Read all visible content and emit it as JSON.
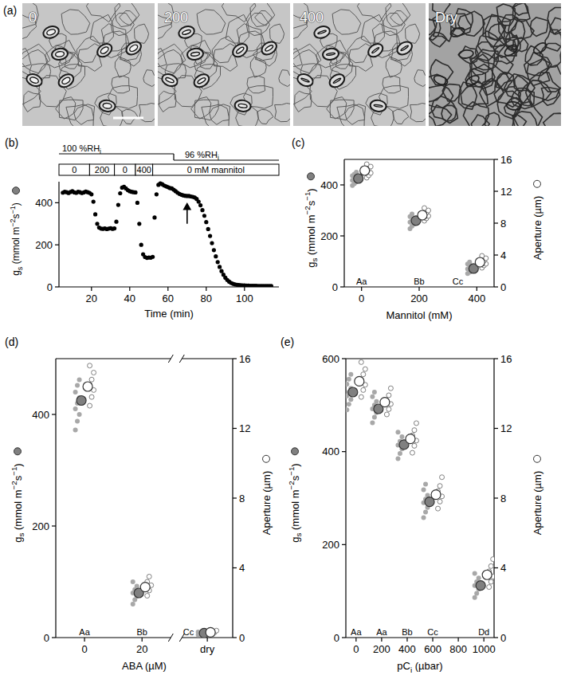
{
  "images": {
    "letter": "(a)",
    "labels": [
      "0",
      "200",
      "400",
      "Dry"
    ]
  },
  "chart_data": [
    {
      "type": "scatter",
      "letter": "(b)",
      "x": [
        5,
        6,
        7,
        8,
        9,
        10,
        11,
        12,
        13,
        14,
        15,
        16,
        17,
        18,
        19,
        20,
        21,
        22,
        23,
        24,
        25,
        26,
        27,
        28,
        29,
        30,
        31,
        32,
        33,
        34,
        35,
        36,
        37,
        38,
        39,
        40,
        41,
        42,
        43,
        44,
        45,
        46,
        47,
        48,
        49,
        50,
        51,
        52,
        53,
        54,
        55,
        56,
        57,
        58,
        59,
        60,
        61,
        62,
        63,
        64,
        65,
        66,
        67,
        68,
        69,
        70,
        71,
        72,
        73,
        74,
        75,
        76,
        77,
        78,
        79,
        80,
        81,
        82,
        83,
        84,
        85,
        86,
        87,
        88,
        89,
        90,
        91,
        92,
        93,
        94,
        95,
        96,
        97,
        98,
        99,
        100,
        101,
        102,
        103,
        104,
        105,
        106,
        107,
        108,
        109,
        110,
        111,
        112,
        113,
        114
      ],
      "values": [
        448,
        452,
        450,
        446,
        451,
        455,
        449,
        447,
        452,
        450,
        446,
        449,
        453,
        450,
        447,
        440,
        405,
        345,
        300,
        282,
        277,
        276,
        278,
        275,
        277,
        279,
        276,
        278,
        310,
        390,
        445,
        472,
        476,
        468,
        460,
        455,
        452,
        450,
        449,
        400,
        300,
        200,
        155,
        142,
        138,
        140,
        139,
        143,
        330,
        440,
        485,
        492,
        488,
        482,
        478,
        474,
        470,
        468,
        462,
        455,
        448,
        442,
        438,
        435,
        433,
        432,
        432,
        430,
        428,
        425,
        418,
        405,
        388,
        365,
        338,
        308,
        275,
        242,
        208,
        175,
        145,
        118,
        95,
        75,
        58,
        44,
        33,
        25,
        19,
        15,
        12,
        10,
        9,
        8,
        7,
        7,
        6,
        6,
        5,
        5,
        5,
        5,
        4,
        4,
        4,
        4,
        4,
        4,
        4,
        4
      ],
      "color": "#000000",
      "marker": "circle",
      "xlim": [
        3,
        118
      ],
      "xticks": [
        20,
        40,
        60,
        80,
        100
      ],
      "ylim": [
        0,
        500
      ],
      "yticks": [
        0,
        200,
        400
      ],
      "x_label": "Time (min)",
      "y_label": [
        {
          "text": "g"
        },
        {
          "sub": "s"
        },
        {
          "text": " (mmol m"
        },
        {
          "sup": "−2"
        },
        {
          "text": "s"
        },
        {
          "sup": "−1"
        },
        {
          "text": ")"
        }
      ],
      "rh_segments": [
        {
          "label": [
            {
              "text": "100 %RH"
            },
            {
              "sub": "i"
            }
          ],
          "from": 3,
          "to": 63
        },
        {
          "label": [
            {
              "text": "96 %RH"
            },
            {
              "sub": "i"
            }
          ],
          "from": 63,
          "to": 118
        }
      ],
      "mannitol_segments": [
        {
          "label": "0",
          "from": 3,
          "to": 19
        },
        {
          "label": "200",
          "from": 19,
          "to": 32
        },
        {
          "label": "0",
          "from": 32,
          "to": 43
        },
        {
          "label": "400",
          "from": 43,
          "to": 52
        },
        {
          "label": "0 mM mannitol",
          "from": 52,
          "to": 118
        }
      ],
      "arrow": {
        "x": 70,
        "y_from": 300,
        "y_to": 395
      }
    },
    {
      "type": "scatter",
      "letter": "(c)",
      "x": [
        0,
        200,
        400
      ],
      "xlim": [
        -60,
        460
      ],
      "xticks": [
        0,
        200,
        400
      ],
      "ylim": [
        0,
        500
      ],
      "yticks": [
        0,
        200,
        400
      ],
      "y2lim": [
        0,
        16
      ],
      "y2ticks": [
        0,
        4,
        8,
        12,
        16
      ],
      "x_label": "Mannitol (mM)",
      "y_label": [
        {
          "text": "g"
        },
        {
          "sub": "s"
        },
        {
          "text": " (mmol m"
        },
        {
          "sup": "−2"
        },
        {
          "text": "s"
        },
        {
          "sup": "−1"
        },
        {
          "text": ")"
        }
      ],
      "y2_label": [
        {
          "text": "Aperture (µm)"
        }
      ],
      "letters": [
        "Aa",
        "Bb",
        "Cc"
      ],
      "series": [
        {
          "color": "#808080",
          "marker": "filled",
          "values": [
            425,
            260,
            72
          ],
          "points": [
            [
              398,
              405,
              412,
              418,
              424,
              430,
              436,
              442,
              450
            ],
            [
              228,
              238,
              246,
              254,
              262,
              268,
              276,
              286
            ],
            [
              52,
              58,
              64,
              70,
              76,
              82,
              90,
              98
            ]
          ]
        },
        {
          "color": "#808080",
          "marker": "open",
          "axis": "y2",
          "values": [
            14.6,
            9,
            3.1
          ],
          "points": [
            [
              13.7,
              14.0,
              14.3,
              14.6,
              14.8,
              15.1,
              15.4
            ],
            [
              8.3,
              8.6,
              8.9,
              9.1,
              9.3,
              9.6,
              9.9
            ],
            [
              2.4,
              2.7,
              2.9,
              3.1,
              3.3,
              3.6,
              3.9
            ]
          ]
        }
      ]
    },
    {
      "type": "scatter",
      "letter": "(d)",
      "categories": [
        "0",
        "20",
        "dry"
      ],
      "ylim": [
        0,
        500
      ],
      "yticks": [
        0,
        200,
        400
      ],
      "y2lim": [
        0,
        16
      ],
      "y2ticks": [
        0,
        4,
        8,
        12,
        16
      ],
      "x_label": "ABA (µM)",
      "y_label": [
        {
          "text": "g"
        },
        {
          "sub": "s"
        },
        {
          "text": " (mmol m"
        },
        {
          "sup": "−2"
        },
        {
          "text": "s"
        },
        {
          "sup": "−1"
        },
        {
          "text": ")"
        }
      ],
      "y2_label": [
        {
          "text": "Aperture (µm)"
        }
      ],
      "letters": [
        "Aa",
        "Bb",
        "Cc"
      ],
      "series": [
        {
          "color": "#808080",
          "marker": "filled",
          "values": [
            425,
            80,
            8
          ],
          "points": [
            [
              372,
              388,
              400,
              410,
              420,
              430,
              440,
              452,
              462
            ],
            [
              60,
              68,
              74,
              80,
              86,
              92,
              100
            ],
            [
              5,
              7,
              8,
              10
            ]
          ]
        },
        {
          "color": "#808080",
          "marker": "open",
          "axis": "y2",
          "values": [
            14.4,
            2.9,
            0.3
          ],
          "points": [
            [
              13.3,
              13.8,
              14.2,
              14.5,
              14.8,
              15.2,
              15.6
            ],
            [
              2.4,
              2.7,
              3.0,
              3.2,
              3.5
            ],
            [
              0.2,
              0.3,
              0.4
            ]
          ]
        }
      ]
    },
    {
      "type": "scatter",
      "letter": "(e)",
      "x": [
        0,
        200,
        400,
        600,
        1000
      ],
      "xlim": [
        -80,
        1080
      ],
      "xticks": [
        0,
        200,
        400,
        600,
        800,
        1000
      ],
      "ylim": [
        0,
        600
      ],
      "yticks": [
        0,
        200,
        400,
        600
      ],
      "y2lim": [
        0,
        16
      ],
      "y2ticks": [
        0,
        4,
        8,
        12,
        16
      ],
      "x_label": [
        {
          "text": "pC"
        },
        {
          "sub": "i"
        },
        {
          "text": " (µbar)"
        }
      ],
      "y_label": [
        {
          "text": "g"
        },
        {
          "sub": "s"
        },
        {
          "text": " (mmol m"
        },
        {
          "sup": "−2"
        },
        {
          "text": "s"
        },
        {
          "sup": "−1"
        },
        {
          "text": ")"
        }
      ],
      "y2_label": [
        {
          "text": "Aperture (µm)"
        }
      ],
      "letters": [
        "Aa",
        "Aa",
        "Bb",
        "Cc",
        "Dd"
      ],
      "series": [
        {
          "color": "#808080",
          "marker": "filled",
          "values": [
            528,
            492,
            415,
            292,
            112
          ],
          "points": [
            [
              490,
              502,
              512,
              520,
              528,
              536,
              545,
              556,
              566
            ],
            [
              462,
              474,
              484,
              492,
              500,
              508,
              518,
              528
            ],
            [
              385,
              396,
              406,
              414,
              422,
              432,
              442
            ],
            [
              258,
              270,
              280,
              290,
              298,
              306,
              318,
              330
            ],
            [
              86,
              95,
              104,
              112,
              120,
              128,
              138
            ]
          ]
        },
        {
          "color": "#808080",
          "marker": "open",
          "axis": "y2",
          "values": [
            14.7,
            13.5,
            11.4,
            8.2,
            3.6
          ],
          "points": [
            [
              13.8,
              14.2,
              14.5,
              14.8,
              15.1,
              15.4,
              15.8
            ],
            [
              12.8,
              13.1,
              13.4,
              13.6,
              13.9,
              14.3
            ],
            [
              10.6,
              11.0,
              11.3,
              11.6,
              11.9,
              12.3
            ],
            [
              7.4,
              7.8,
              8.1,
              8.4,
              8.7,
              9.2
            ],
            [
              2.9,
              3.2,
              3.5,
              3.8,
              4.1,
              4.5
            ]
          ]
        }
      ]
    }
  ]
}
